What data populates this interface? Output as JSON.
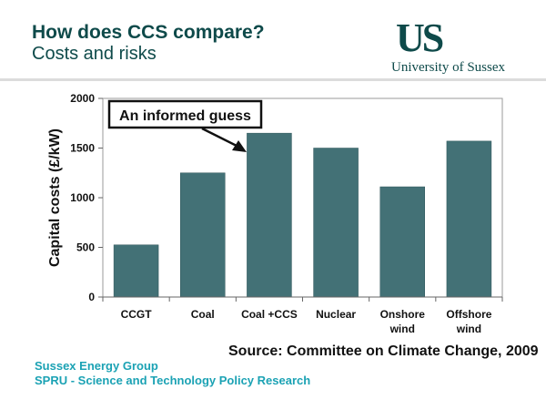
{
  "slide": {
    "title": "How does CCS compare?",
    "subtitle": "Costs and risks",
    "logo": {
      "mark": "US",
      "text": "University of Sussex"
    },
    "source": "Source: Committee on Climate Change, 2009",
    "footer": [
      "Sussex Energy Group",
      "SPRU - Science and Technology Policy Research"
    ]
  },
  "colors": {
    "title": "#0e4a4a",
    "bar": "#437176",
    "footer": "#1ba2b4"
  },
  "chart_data": {
    "type": "bar",
    "categories": [
      [
        "CCGT"
      ],
      [
        "Coal"
      ],
      [
        "Coal +CCS"
      ],
      [
        "Nuclear"
      ],
      [
        "Onshore",
        "wind"
      ],
      [
        "Offshore",
        "wind"
      ]
    ],
    "values": [
      525,
      1250,
      1650,
      1500,
      1110,
      1570
    ],
    "ylabel": "Capital costs (£/kW)",
    "ylim": [
      0,
      2000
    ],
    "yticks": [
      0,
      500,
      1000,
      1500,
      2000
    ],
    "grid": false,
    "annotation": {
      "text": "An informed guess",
      "target_category": "Coal +CCS"
    }
  }
}
